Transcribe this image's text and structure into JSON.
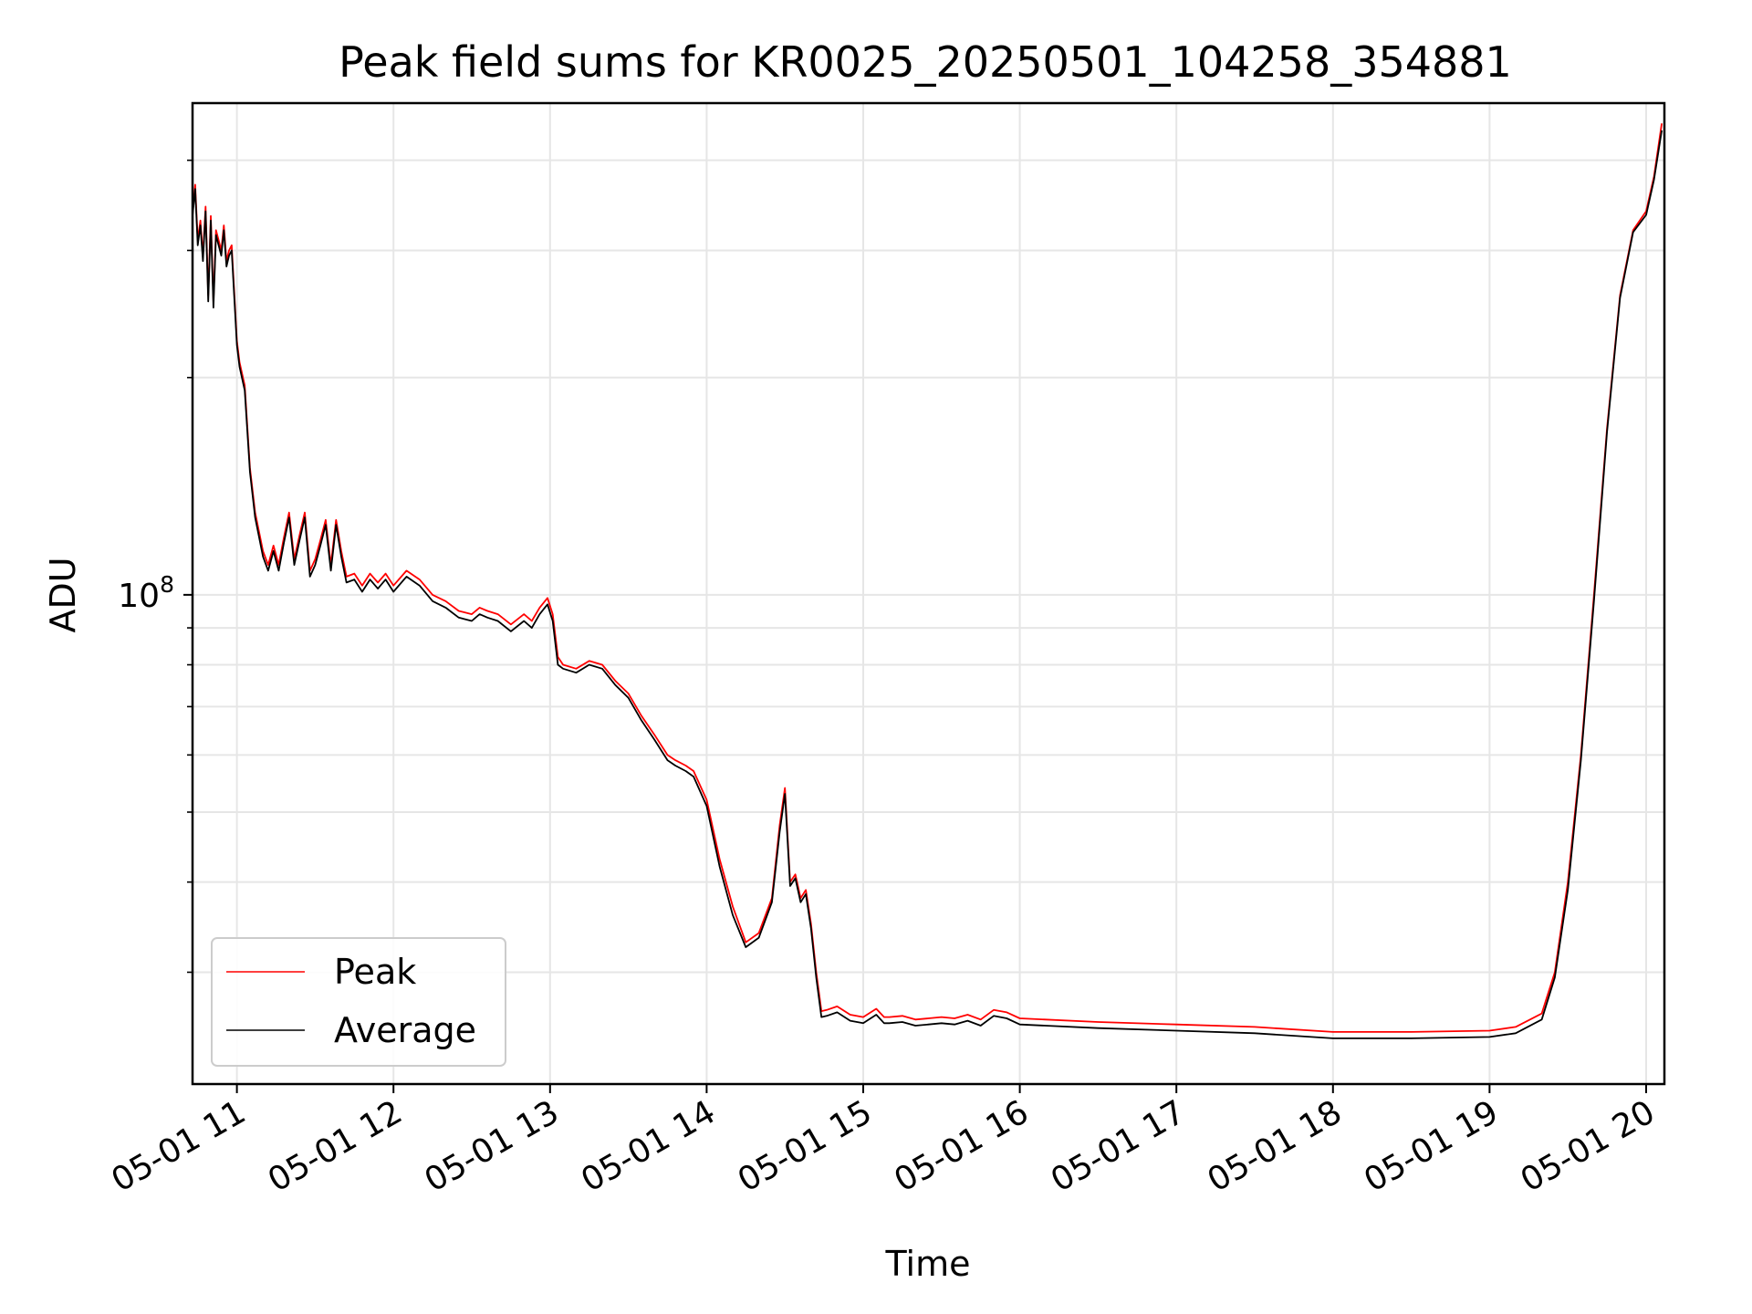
{
  "chart_data": {
    "type": "line",
    "title": "Peak field sums for KR0025_20250501_104258_354881",
    "xlabel": "Time",
    "ylabel": "ADU",
    "yscale": "log",
    "xlim": [
      "2025-05-01 10:43",
      "2025-05-01 20:07"
    ],
    "ylim": [
      21000000,
      480000000
    ],
    "x_ticks": [
      "05-01 11",
      "05-01 12",
      "05-01 13",
      "05-01 14",
      "05-01 15",
      "05-01 16",
      "05-01 17",
      "05-01 18",
      "05-01 19",
      "05-01 20"
    ],
    "y_ticks": [
      {
        "value": 100000000,
        "base": "10",
        "exponent": "8"
      }
    ],
    "grid": true,
    "legend_position": "lower-left",
    "x": [
      "2025-05-01 10:43",
      "2025-05-01 10:44",
      "2025-05-01 10:45",
      "2025-05-01 10:46",
      "2025-05-01 10:47",
      "2025-05-01 10:48",
      "2025-05-01 10:49",
      "2025-05-01 10:50",
      "2025-05-01 10:51",
      "2025-05-01 10:52",
      "2025-05-01 10:53",
      "2025-05-01 10:54",
      "2025-05-01 10:55",
      "2025-05-01 10:56",
      "2025-05-01 10:57",
      "2025-05-01 10:58",
      "2025-05-01 11:00",
      "2025-05-01 11:01",
      "2025-05-01 11:03",
      "2025-05-01 11:05",
      "2025-05-01 11:07",
      "2025-05-01 11:10",
      "2025-05-01 11:12",
      "2025-05-01 11:14",
      "2025-05-01 11:16",
      "2025-05-01 11:18",
      "2025-05-01 11:20",
      "2025-05-01 11:22",
      "2025-05-01 11:24",
      "2025-05-01 11:26",
      "2025-05-01 11:28",
      "2025-05-01 11:30",
      "2025-05-01 11:32",
      "2025-05-01 11:34",
      "2025-05-01 11:36",
      "2025-05-01 11:38",
      "2025-05-01 11:40",
      "2025-05-01 11:42",
      "2025-05-01 11:45",
      "2025-05-01 11:48",
      "2025-05-01 11:51",
      "2025-05-01 11:54",
      "2025-05-01 11:57",
      "2025-05-01 12:00",
      "2025-05-01 12:05",
      "2025-05-01 12:10",
      "2025-05-01 12:15",
      "2025-05-01 12:20",
      "2025-05-01 12:25",
      "2025-05-01 12:30",
      "2025-05-01 12:33",
      "2025-05-01 12:36",
      "2025-05-01 12:40",
      "2025-05-01 12:45",
      "2025-05-01 12:50",
      "2025-05-01 12:53",
      "2025-05-01 12:56",
      "2025-05-01 12:59",
      "2025-05-01 13:01",
      "2025-05-01 13:03",
      "2025-05-01 13:05",
      "2025-05-01 13:10",
      "2025-05-01 13:15",
      "2025-05-01 13:20",
      "2025-05-01 13:25",
      "2025-05-01 13:30",
      "2025-05-01 13:35",
      "2025-05-01 13:40",
      "2025-05-01 13:45",
      "2025-05-01 13:48",
      "2025-05-01 13:52",
      "2025-05-01 13:55",
      "2025-05-01 14:00",
      "2025-05-01 14:05",
      "2025-05-01 14:10",
      "2025-05-01 14:15",
      "2025-05-01 14:20",
      "2025-05-01 14:25",
      "2025-05-01 14:28",
      "2025-05-01 14:30",
      "2025-05-01 14:32",
      "2025-05-01 14:34",
      "2025-05-01 14:36",
      "2025-05-01 14:38",
      "2025-05-01 14:40",
      "2025-05-01 14:42",
      "2025-05-01 14:44",
      "2025-05-01 14:46",
      "2025-05-01 14:50",
      "2025-05-01 14:55",
      "2025-05-01 15:00",
      "2025-05-01 15:05",
      "2025-05-01 15:08",
      "2025-05-01 15:10",
      "2025-05-01 15:15",
      "2025-05-01 15:20",
      "2025-05-01 15:25",
      "2025-05-01 15:30",
      "2025-05-01 15:35",
      "2025-05-01 15:40",
      "2025-05-01 15:45",
      "2025-05-01 15:50",
      "2025-05-01 15:55",
      "2025-05-01 16:00",
      "2025-05-01 16:30",
      "2025-05-01 17:00",
      "2025-05-01 17:30",
      "2025-05-01 18:00",
      "2025-05-01 18:30",
      "2025-05-01 19:00",
      "2025-05-01 19:10",
      "2025-05-01 19:20",
      "2025-05-01 19:25",
      "2025-05-01 19:30",
      "2025-05-01 19:35",
      "2025-05-01 19:40",
      "2025-05-01 19:45",
      "2025-05-01 19:50",
      "2025-05-01 19:55",
      "2025-05-01 20:00",
      "2025-05-01 20:03",
      "2025-05-01 20:06"
    ],
    "series": [
      {
        "name": "Peak",
        "color": "#ff0000",
        "values": [
          340,
          370,
          310,
          330,
          295,
          345,
          260,
          335,
          255,
          320,
          310,
          300,
          325,
          290,
          300,
          305,
          225,
          210,
          195,
          150,
          130,
          115,
          110,
          117,
          110,
          120,
          130,
          112,
          121,
          130,
          108,
          112,
          119,
          127,
          110,
          127,
          115,
          106,
          107,
          103,
          107,
          104,
          107,
          103,
          108,
          105,
          100,
          98,
          95,
          94,
          96,
          95,
          94,
          91,
          94,
          92,
          96,
          99,
          94,
          82,
          80,
          79,
          81,
          80,
          76,
          73,
          68,
          64,
          60,
          59,
          58,
          57,
          52,
          43,
          37,
          33,
          34,
          38,
          48,
          54,
          40,
          41,
          38,
          39,
          35,
          30,
          26.5,
          26.6,
          26.9,
          26.2,
          26.0,
          26.7,
          26.0,
          26.0,
          26.1,
          25.8,
          25.9,
          26.0,
          25.9,
          26.2,
          25.8,
          26.6,
          26.4,
          25.9,
          25.6,
          25.4,
          25.2,
          24.8,
          24.8,
          24.9,
          25.2,
          26.3,
          30,
          40,
          60,
          100,
          170,
          260,
          320,
          340,
          380,
          450
        ]
      },
      {
        "name": "Average",
        "color": "#000000",
        "values": [
          335,
          365,
          305,
          325,
          290,
          340,
          255,
          330,
          250,
          315,
          305,
          295,
          320,
          285,
          295,
          300,
          222,
          207,
          192,
          148,
          128,
          113,
          108,
          115,
          108,
          118,
          128,
          110,
          119,
          128,
          106,
          110,
          117,
          125,
          108,
          125,
          113,
          104,
          105,
          101,
          105,
          102,
          105,
          101,
          106,
          103,
          98,
          96,
          93,
          92,
          94,
          93,
          92,
          89,
          92,
          90,
          94,
          97,
          92,
          80,
          79,
          78,
          80,
          79,
          75,
          72,
          67,
          63,
          59,
          58,
          57,
          56,
          51,
          42,
          36,
          32.5,
          33.5,
          37.5,
          47,
          53,
          39.5,
          40.5,
          37.5,
          38.5,
          34.5,
          29.5,
          26.0,
          26.1,
          26.4,
          25.7,
          25.5,
          26.2,
          25.5,
          25.5,
          25.6,
          25.3,
          25.4,
          25.5,
          25.4,
          25.7,
          25.3,
          26.1,
          25.9,
          25.4,
          25.1,
          24.9,
          24.7,
          24.3,
          24.3,
          24.4,
          24.7,
          25.8,
          29.5,
          39,
          59,
          98,
          168,
          258,
          318,
          336,
          376,
          440
        ]
      }
    ],
    "value_unit_multiplier": 1000000
  }
}
